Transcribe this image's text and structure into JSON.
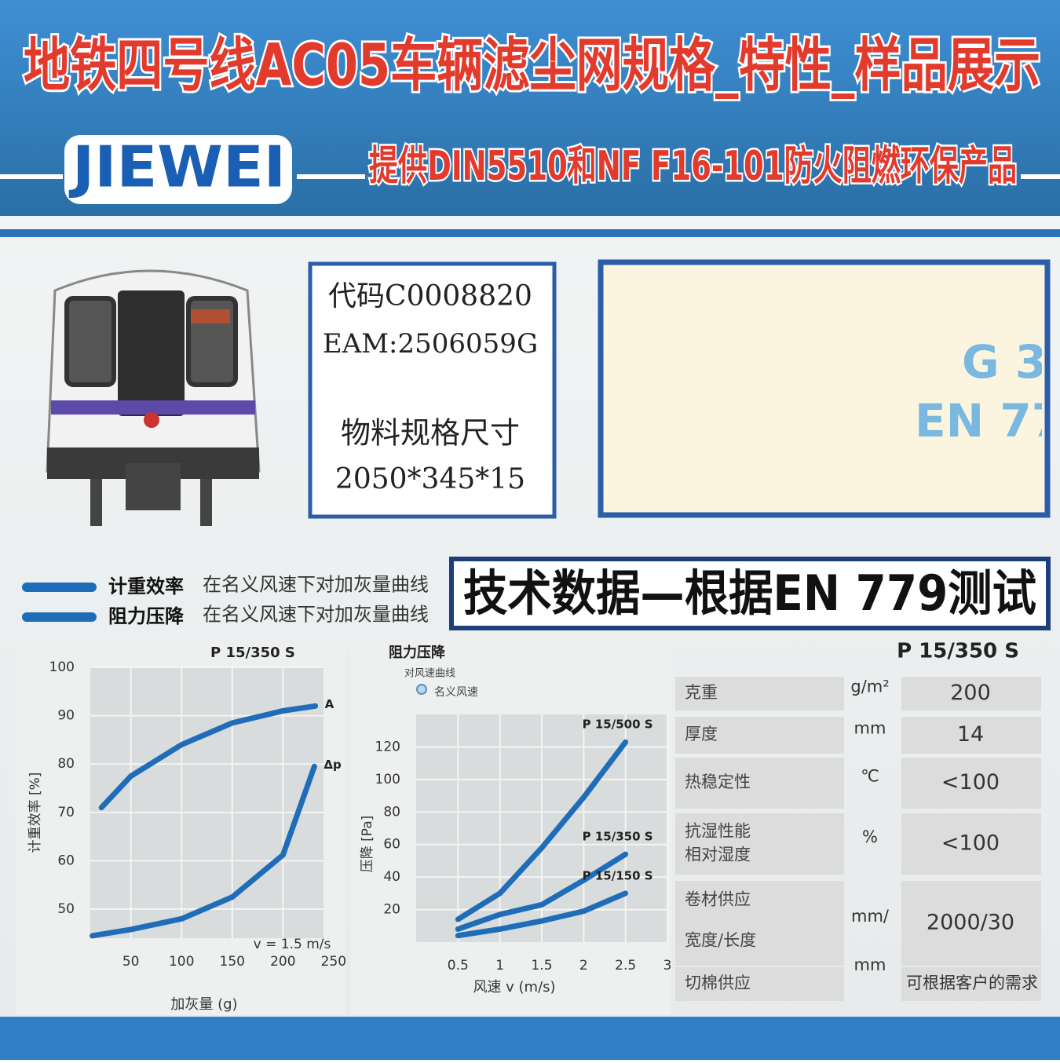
{
  "header": {
    "title": "地铁四号线AC05车辆滤尘网规格_特性_样品展示",
    "logo": "JIEWEI",
    "subtitle": "提供DIN5510和NF F16-101防火阻燃环保产品"
  },
  "product": {
    "code": "代码C0008820",
    "eam": "EAM:2506059G",
    "size_label": "物料规格尺寸",
    "size": "2050*345*15"
  },
  "sample": {
    "lines": [
      "G 3",
      "EN 77"
    ]
  },
  "legend": [
    {
      "name": "计重效率",
      "desc": "在名义风速下对加灰量曲线"
    },
    {
      "name": "阻力压降",
      "desc": "在名义风速下对加灰量曲线"
    }
  ],
  "tech_title": "技术数据—根据EN 779测试",
  "chart_data": [
    {
      "type": "line",
      "title": "P 15/350 S",
      "xlabel": "加灰量 (g)",
      "ylabel": "计重效率 [%]",
      "annotation": "v = 1.5 m/s",
      "xlim": [
        10,
        240
      ],
      "ylim": [
        44,
        100
      ],
      "xticks": [
        50,
        100,
        150,
        200,
        250
      ],
      "yticks": [
        50,
        60,
        70,
        80,
        90,
        100
      ],
      "grid": true,
      "series": [
        {
          "name": "A",
          "color": "#1f6db8",
          "x": [
            21,
            50,
            100,
            150,
            200,
            232
          ],
          "values": [
            71,
            77.5,
            84,
            88.5,
            91,
            92
          ]
        },
        {
          "name": "Δp",
          "color": "#1f6db8",
          "x": [
            12,
            50,
            100,
            150,
            200,
            231
          ],
          "values": [
            44.5,
            45.8,
            48,
            52.5,
            61.2,
            79.5
          ]
        }
      ]
    },
    {
      "type": "line",
      "title": "阻力压降",
      "subtitle": "对风速曲线",
      "marker_label": "名义风速",
      "xlabel": "风速 v (m/s)",
      "ylabel": "压降 [Pa]",
      "xlim": [
        0,
        3
      ],
      "ylim": [
        0,
        140
      ],
      "xticks": [
        0.5,
        1,
        1.5,
        2,
        2.5,
        3
      ],
      "yticks": [
        20,
        40,
        60,
        80,
        100,
        120
      ],
      "grid": true,
      "series": [
        {
          "name": "P 15/500 S",
          "color": "#1f6db8",
          "x": [
            0.5,
            1,
            1.5,
            2,
            2.5
          ],
          "values": [
            14,
            30,
            58,
            89,
            123
          ]
        },
        {
          "name": "P 15/350 S",
          "color": "#1f6db8",
          "x": [
            0.5,
            1,
            1.5,
            2,
            2.5
          ],
          "values": [
            8,
            17,
            23,
            38,
            54
          ]
        },
        {
          "name": "P 15/150 S",
          "color": "#1f6db8",
          "x": [
            0.5,
            1,
            1.5,
            2,
            2.5
          ],
          "values": [
            4,
            8,
            13,
            19,
            30
          ]
        }
      ]
    }
  ],
  "table": {
    "model": "P 15/350 S",
    "rows": [
      {
        "name": [
          "克重"
        ],
        "unit": "g/m²",
        "value": 200
      },
      {
        "name": [
          "厚度"
        ],
        "unit": "mm",
        "value": 14
      },
      {
        "name": [
          "热稳定性"
        ],
        "unit": "℃",
        "value": "<100"
      },
      {
        "name": [
          "抗湿性能",
          "相对湿度"
        ],
        "unit": "%",
        "value": "<100"
      },
      {
        "name": [
          "卷材供应",
          "宽度/长度"
        ],
        "unit": "mm/",
        "value": "2000/30"
      },
      {
        "name": [
          "切棉供应"
        ],
        "unit": "mm",
        "value": "可根据客户的需求"
      }
    ]
  }
}
